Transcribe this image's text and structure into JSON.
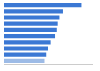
{
  "chart_data": {
    "type": "bar",
    "orientation": "horizontal",
    "categories": [
      null,
      null,
      null,
      null,
      null,
      null,
      null,
      null,
      null,
      null
    ],
    "values": [
      88,
      67,
      63,
      61,
      60,
      58,
      53,
      50,
      48,
      46
    ],
    "colors": [
      "#3b78d4",
      "#3b78d4",
      "#3b78d4",
      "#3b78d4",
      "#3b78d4",
      "#3b78d4",
      "#3b78d4",
      "#3b78d4",
      "#3b78d4",
      "#9dbbe6"
    ],
    "xlim": [
      0,
      100
    ],
    "grid": false,
    "tick_labels": false
  }
}
